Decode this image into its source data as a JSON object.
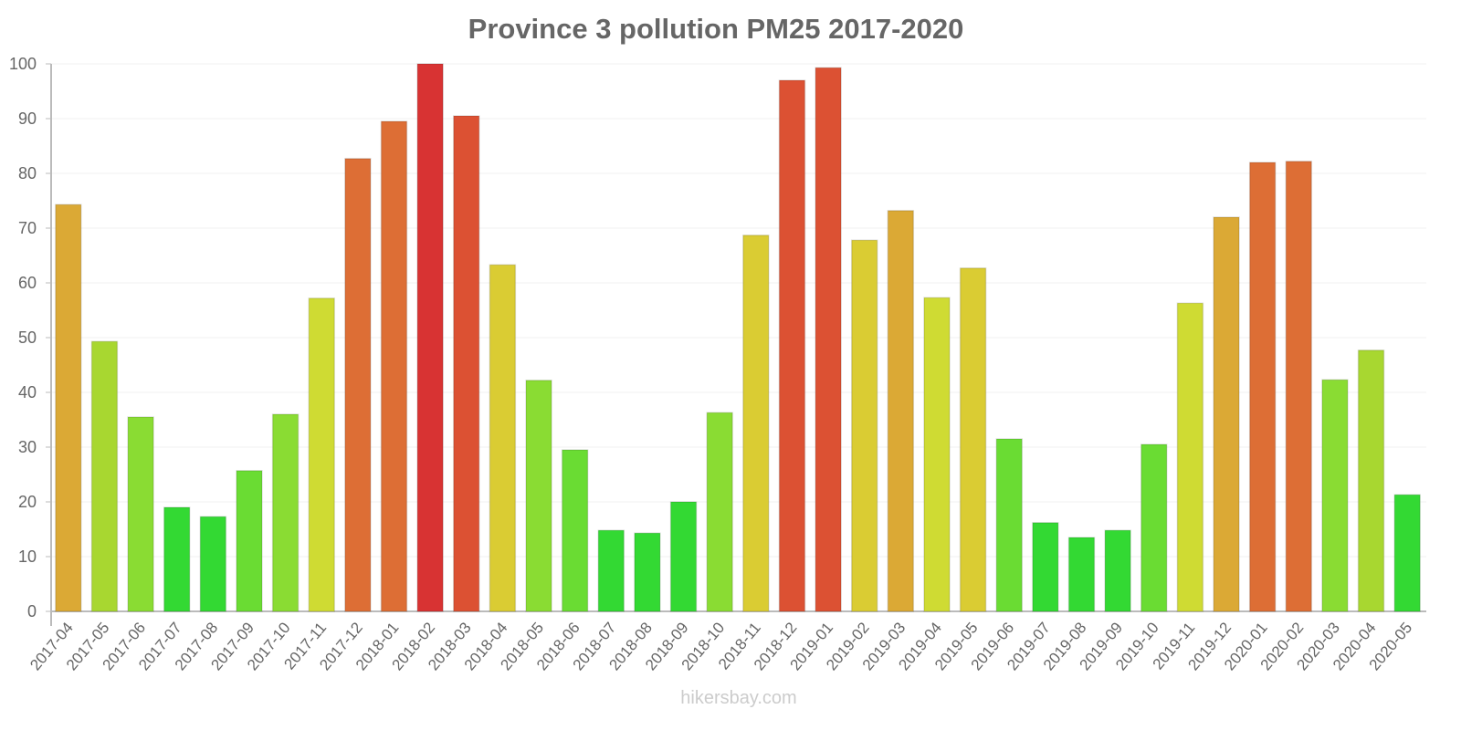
{
  "chart_data": {
    "type": "bar",
    "title": "Province 3 pollution PM25 2017-2020",
    "xlabel": "",
    "ylabel": "",
    "ylim": [
      0,
      100
    ],
    "yticks": [
      0,
      10,
      20,
      30,
      40,
      50,
      60,
      70,
      80,
      90,
      100
    ],
    "grid": true,
    "legend": null,
    "categories": [
      "2017-04",
      "2017-05",
      "2017-06",
      "2017-07",
      "2017-08",
      "2017-09",
      "2017-10",
      "2017-11",
      "2017-12",
      "2018-01",
      "2018-02",
      "2018-03",
      "2018-04",
      "2018-05",
      "2018-06",
      "2018-07",
      "2018-08",
      "2018-09",
      "2018-10",
      "2018-11",
      "2018-12",
      "2019-01",
      "2019-02",
      "2019-03",
      "2019-04",
      "2019-05",
      "2019-06",
      "2019-07",
      "2019-08",
      "2019-09",
      "2019-10",
      "2019-11",
      "2019-12",
      "2020-01",
      "2020-02",
      "2020-03",
      "2020-04",
      "2020-05"
    ],
    "values": [
      74.3,
      49.3,
      35.5,
      19,
      17.3,
      25.7,
      36,
      57.2,
      82.7,
      89.5,
      100,
      90.5,
      63.3,
      42.2,
      29.5,
      14.8,
      14.3,
      20,
      36.3,
      68.7,
      97,
      99.3,
      67.8,
      73.2,
      57.3,
      62.7,
      31.5,
      16.2,
      13.5,
      14.8,
      30.5,
      56.3,
      72,
      82,
      82.2,
      42.3,
      47.7,
      21.3
    ],
    "colors": [
      "#dba935",
      "#a8d730",
      "#8adc33",
      "#33d933",
      "#33d933",
      "#6adc33",
      "#8adc33",
      "#cfdb33",
      "#dd6e35",
      "#dd6e35",
      "#d83333",
      "#dc5133",
      "#dacc33",
      "#8adc33",
      "#6adc33",
      "#33d933",
      "#33d933",
      "#33d933",
      "#8adc33",
      "#dacc33",
      "#dc5133",
      "#dc5133",
      "#dacc33",
      "#dba935",
      "#cfdb33",
      "#dacc33",
      "#6adc33",
      "#33d933",
      "#33d933",
      "#33d933",
      "#6adc33",
      "#cfdb33",
      "#dba935",
      "#dd6e35",
      "#dd6e35",
      "#8adc33",
      "#a8d730",
      "#33d933"
    ]
  },
  "watermark": "hikersbay.com"
}
